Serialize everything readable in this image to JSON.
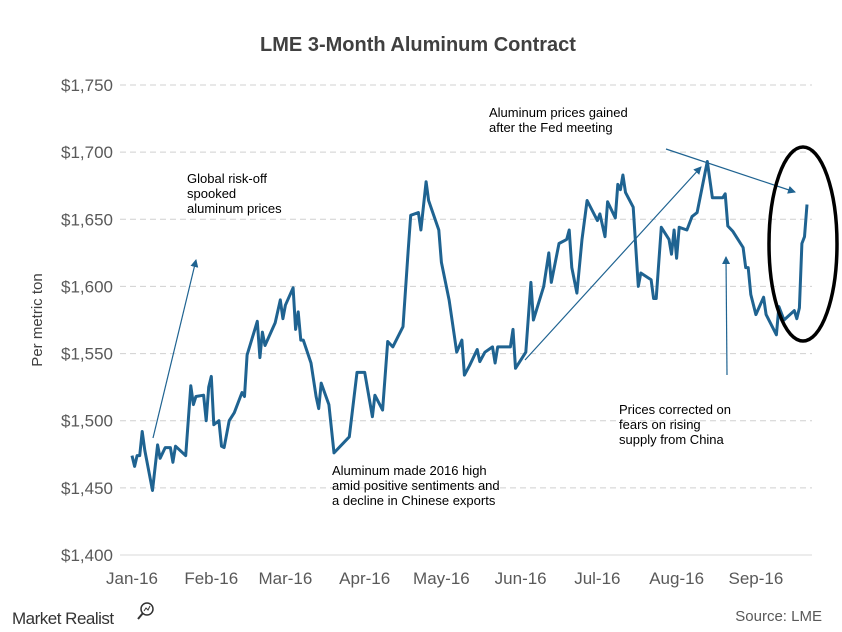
{
  "chart_data": {
    "type": "line",
    "title": "LME 3-Month Aluminum Contract",
    "ylabel": "Per metric ton",
    "xlabel": "",
    "ylim": [
      1400,
      1750
    ],
    "yticks": [
      1400,
      1450,
      1500,
      1550,
      1600,
      1650,
      1700,
      1750
    ],
    "ytick_labels": [
      "$1,400",
      "$1,450",
      "$1,500",
      "$1,550",
      "$1,600",
      "$1,650",
      "$1,700",
      "$1,750"
    ],
    "xticks": [
      "2016-01-01",
      "2016-02-01",
      "2016-03-01",
      "2016-04-01",
      "2016-05-01",
      "2016-06-01",
      "2016-07-01",
      "2016-08-01",
      "2016-09-01"
    ],
    "xtick_labels": [
      "Jan-16",
      "Feb-16",
      "Mar-16",
      "Apr-16",
      "May-16",
      "Jun-16",
      "Jul-16",
      "Aug-16",
      "Sep-16"
    ],
    "grid": "horizontal dashed",
    "line_color": "#1f6391",
    "series": [
      {
        "points": [
          [
            "2016-01-01",
            1474
          ],
          [
            "2016-01-02",
            1466
          ],
          [
            "2016-01-03",
            1474
          ],
          [
            "2016-01-04",
            1474
          ],
          [
            "2016-01-05",
            1492
          ],
          [
            "2016-01-06",
            1478
          ],
          [
            "2016-01-09",
            1448
          ],
          [
            "2016-01-11",
            1482
          ],
          [
            "2016-01-12",
            1472
          ],
          [
            "2016-01-14",
            1480
          ],
          [
            "2016-01-16",
            1480
          ],
          [
            "2016-01-17",
            1469
          ],
          [
            "2016-01-18",
            1481
          ],
          [
            "2016-01-22",
            1474
          ],
          [
            "2016-01-24",
            1526
          ],
          [
            "2016-01-25",
            1512
          ],
          [
            "2016-01-26",
            1518
          ],
          [
            "2016-01-29",
            1519
          ],
          [
            "2016-01-30",
            1500
          ],
          [
            "2016-01-31",
            1525
          ],
          [
            "2016-02-01",
            1533
          ],
          [
            "2016-02-02",
            1497
          ],
          [
            "2016-02-04",
            1500
          ],
          [
            "2016-02-05",
            1481
          ],
          [
            "2016-02-06",
            1480
          ],
          [
            "2016-02-08",
            1500
          ],
          [
            "2016-02-10",
            1506
          ],
          [
            "2016-02-13",
            1521
          ],
          [
            "2016-02-14",
            1518
          ],
          [
            "2016-02-15",
            1549
          ],
          [
            "2016-02-19",
            1574
          ],
          [
            "2016-02-20",
            1547
          ],
          [
            "2016-02-21",
            1566
          ],
          [
            "2016-02-22",
            1556
          ],
          [
            "2016-02-26",
            1573
          ],
          [
            "2016-02-28",
            1590
          ],
          [
            "2016-02-29",
            1576
          ],
          [
            "2016-03-01",
            1586
          ],
          [
            "2016-03-04",
            1599
          ],
          [
            "2016-03-05",
            1568
          ],
          [
            "2016-03-06",
            1581
          ],
          [
            "2016-03-07",
            1560
          ],
          [
            "2016-03-08",
            1560
          ],
          [
            "2016-03-11",
            1543
          ],
          [
            "2016-03-13",
            1518
          ],
          [
            "2016-03-14",
            1509
          ],
          [
            "2016-03-15",
            1528
          ],
          [
            "2016-03-18",
            1512
          ],
          [
            "2016-03-20",
            1476
          ],
          [
            "2016-03-26",
            1488
          ],
          [
            "2016-03-29",
            1536
          ],
          [
            "2016-04-01",
            1536
          ],
          [
            "2016-04-04",
            1503
          ],
          [
            "2016-04-05",
            1519
          ],
          [
            "2016-04-08",
            1508
          ],
          [
            "2016-04-10",
            1559
          ],
          [
            "2016-04-12",
            1555
          ],
          [
            "2016-04-16",
            1570
          ],
          [
            "2016-04-18",
            1627
          ],
          [
            "2016-04-19",
            1653
          ],
          [
            "2016-04-22",
            1655
          ],
          [
            "2016-04-23",
            1642
          ],
          [
            "2016-04-25",
            1678
          ],
          [
            "2016-04-26",
            1664
          ],
          [
            "2016-04-30",
            1642
          ],
          [
            "2016-05-01",
            1618
          ],
          [
            "2016-05-04",
            1590
          ],
          [
            "2016-05-06",
            1564
          ],
          [
            "2016-05-07",
            1551
          ],
          [
            "2016-05-09",
            1560
          ],
          [
            "2016-05-10",
            1534
          ],
          [
            "2016-05-12",
            1541
          ],
          [
            "2016-05-15",
            1553
          ],
          [
            "2016-05-16",
            1544
          ],
          [
            "2016-05-18",
            1551
          ],
          [
            "2016-05-21",
            1555
          ],
          [
            "2016-05-22",
            1543
          ],
          [
            "2016-05-23",
            1555
          ],
          [
            "2016-05-28",
            1555
          ],
          [
            "2016-05-29",
            1568
          ],
          [
            "2016-05-30",
            1539
          ],
          [
            "2016-06-03",
            1551
          ],
          [
            "2016-06-05",
            1603
          ],
          [
            "2016-06-06",
            1575
          ],
          [
            "2016-06-10",
            1600
          ],
          [
            "2016-06-12",
            1625
          ],
          [
            "2016-06-13",
            1603
          ],
          [
            "2016-06-16",
            1632
          ],
          [
            "2016-06-19",
            1635
          ],
          [
            "2016-06-20",
            1642
          ],
          [
            "2016-06-21",
            1614
          ],
          [
            "2016-06-23",
            1595
          ],
          [
            "2016-06-25",
            1635
          ],
          [
            "2016-06-27",
            1664
          ],
          [
            "2016-07-01",
            1649
          ],
          [
            "2016-07-02",
            1654
          ],
          [
            "2016-07-04",
            1637
          ],
          [
            "2016-07-05",
            1663
          ],
          [
            "2016-07-08",
            1651
          ],
          [
            "2016-07-09",
            1676
          ],
          [
            "2016-07-10",
            1672
          ],
          [
            "2016-07-11",
            1683
          ],
          [
            "2016-07-12",
            1670
          ],
          [
            "2016-07-15",
            1659
          ],
          [
            "2016-07-17",
            1600
          ],
          [
            "2016-07-18",
            1610
          ],
          [
            "2016-07-22",
            1605
          ],
          [
            "2016-07-23",
            1591
          ],
          [
            "2016-07-24",
            1591
          ],
          [
            "2016-07-26",
            1644
          ],
          [
            "2016-07-29",
            1635
          ],
          [
            "2016-07-30",
            1624
          ],
          [
            "2016-07-31",
            1642
          ],
          [
            "2016-08-01",
            1621
          ],
          [
            "2016-08-02",
            1644
          ],
          [
            "2016-08-05",
            1642
          ],
          [
            "2016-08-07",
            1652
          ],
          [
            "2016-08-09",
            1655
          ],
          [
            "2016-08-11",
            1674
          ],
          [
            "2016-08-13",
            1693
          ],
          [
            "2016-08-15",
            1666
          ],
          [
            "2016-08-19",
            1666
          ],
          [
            "2016-08-20",
            1669
          ],
          [
            "2016-08-21",
            1645
          ],
          [
            "2016-08-23",
            1641
          ],
          [
            "2016-08-27",
            1629
          ],
          [
            "2016-08-28",
            1614
          ],
          [
            "2016-08-29",
            1614
          ],
          [
            "2016-08-30",
            1594
          ],
          [
            "2016-09-01",
            1579
          ],
          [
            "2016-09-04",
            1592
          ],
          [
            "2016-09-05",
            1579
          ],
          [
            "2016-09-09",
            1564
          ],
          [
            "2016-09-10",
            1585
          ],
          [
            "2016-09-12",
            1575
          ],
          [
            "2016-09-16",
            1582
          ],
          [
            "2016-09-17",
            1576
          ],
          [
            "2016-09-18",
            1584
          ],
          [
            "2016-09-19",
            1632
          ],
          [
            "2016-09-20",
            1637
          ],
          [
            "2016-09-21",
            1661
          ]
        ]
      }
    ],
    "annotations": [
      {
        "lines": [
          "Global risk-off",
          "spooked",
          "aluminum prices"
        ]
      },
      {
        "lines": [
          "Aluminum made 2016 high",
          "amid positive sentiments and",
          "a decline in Chinese exports"
        ]
      },
      {
        "lines": [
          "Aluminum prices gained",
          "after the Fed meeting"
        ]
      },
      {
        "lines": [
          "Prices corrected on",
          "fears on rising",
          "supply from China"
        ]
      }
    ],
    "highlight": "ellipse around mid-September rally"
  },
  "footer": {
    "source": "Source: LME",
    "logo": "Market Realist"
  }
}
